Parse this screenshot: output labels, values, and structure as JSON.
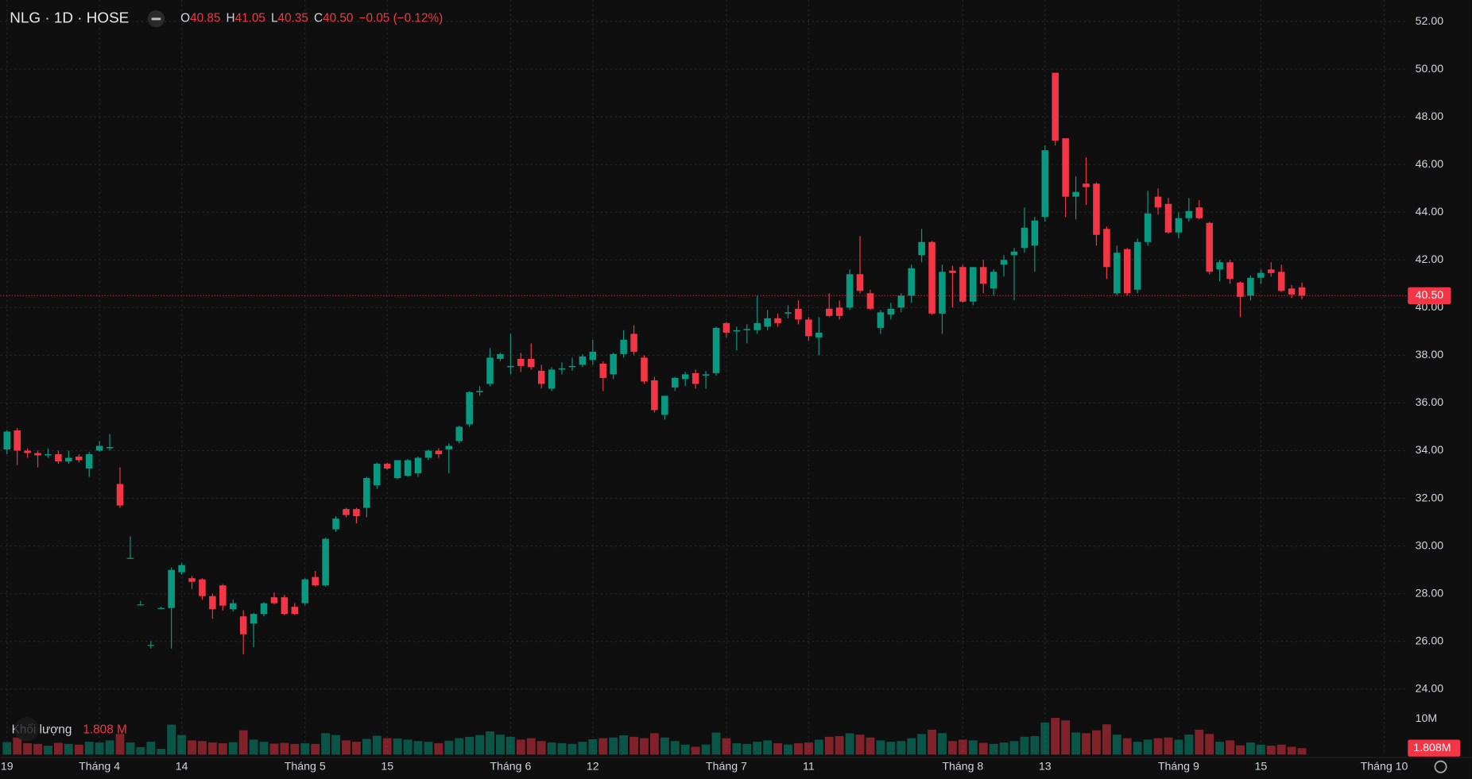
{
  "chart_data": {
    "type": "candlestick",
    "title": "NLG · 1D · HOSE",
    "legend_fields": [
      [
        "O",
        "40.85"
      ],
      [
        "H",
        "41.05"
      ],
      [
        "L",
        "40.35"
      ],
      [
        "C",
        "40.50"
      ]
    ],
    "change": "−0.05 (−0.12%)",
    "up_color": "#089981",
    "down_color": "#f23645",
    "open": [
      34.05,
      34.85,
      34.0,
      33.9,
      33.8,
      33.85,
      33.55,
      33.75,
      33.25,
      34.0,
      34.1,
      32.6,
      29.5,
      27.55,
      25.85,
      27.4,
      27.4,
      28.9,
      28.65,
      28.6,
      27.9,
      28.35,
      27.35,
      27.05,
      26.75,
      27.15,
      27.85,
      27.85,
      27.45,
      27.6,
      28.7,
      28.35,
      30.7,
      31.55,
      31.55,
      31.6,
      32.55,
      33.45,
      32.85,
      32.95,
      33.05,
      33.7,
      34.0,
      34.05,
      34.4,
      35.1,
      36.45,
      36.8,
      37.85,
      37.5,
      37.85,
      37.85,
      37.35,
      36.6,
      37.4,
      37.5,
      37.6,
      37.8,
      37.65,
      37.2,
      38.05,
      38.9,
      37.9,
      36.95,
      35.5,
      36.65,
      37.0,
      37.25,
      37.15,
      37.25,
      39.35,
      39.0,
      39.05,
      39.05,
      39.2,
      39.55,
      39.75,
      39.95,
      39.5,
      38.75,
      39.95,
      40.0,
      40.0,
      41.4,
      40.6,
      39.15,
      39.7,
      40.0,
      40.5,
      42.2,
      42.75,
      39.75,
      41.55,
      41.7,
      40.25,
      41.7,
      40.8,
      41.8,
      42.2,
      42.5,
      42.6,
      43.8,
      49.85,
      47.1,
      44.65,
      45.2,
      45.2,
      43.3,
      40.6,
      42.45,
      40.75,
      42.75,
      44.65,
      44.35,
      43.15,
      43.75,
      44.2,
      43.55,
      41.6,
      41.9,
      41.05,
      40.5,
      41.25,
      41.6,
      41.5,
      40.8,
      40.85
    ],
    "high": [
      34.85,
      34.95,
      34.1,
      34.0,
      34.1,
      34.0,
      34.0,
      33.85,
      33.95,
      34.4,
      34.7,
      33.3,
      30.4,
      27.7,
      26.0,
      27.45,
      29.1,
      29.3,
      28.75,
      28.65,
      28.0,
      28.4,
      27.75,
      27.3,
      27.2,
      27.65,
      28.05,
      27.95,
      27.6,
      28.65,
      28.95,
      30.35,
      31.25,
      31.6,
      31.6,
      32.9,
      33.5,
      33.5,
      33.6,
      33.65,
      33.75,
      34.05,
      34.1,
      34.3,
      35.05,
      36.5,
      36.7,
      38.3,
      38.1,
      38.9,
      38.1,
      38.5,
      37.6,
      37.5,
      37.7,
      37.9,
      38.05,
      38.65,
      37.75,
      38.1,
      39.05,
      39.25,
      38.0,
      37.1,
      36.3,
      37.1,
      37.3,
      37.4,
      37.35,
      39.2,
      39.4,
      39.2,
      39.3,
      40.5,
      39.9,
      39.75,
      40.1,
      40.3,
      39.6,
      39.6,
      40.6,
      40.3,
      41.6,
      43.0,
      40.75,
      39.9,
      40.2,
      40.6,
      41.8,
      43.3,
      42.8,
      41.8,
      41.75,
      41.8,
      41.7,
      42.0,
      41.6,
      42.2,
      42.5,
      44.2,
      43.8,
      46.8,
      49.85,
      47.1,
      45.5,
      46.3,
      45.25,
      43.4,
      42.6,
      42.5,
      42.9,
      44.9,
      45.0,
      44.6,
      44.0,
      44.6,
      44.5,
      43.6,
      42.0,
      42.0,
      41.1,
      41.35,
      41.6,
      41.9,
      41.8,
      40.95,
      41.05
    ],
    "low": [
      33.85,
      33.4,
      33.7,
      33.3,
      33.7,
      33.45,
      33.45,
      33.5,
      32.9,
      33.95,
      34.0,
      31.6,
      29.45,
      27.5,
      25.7,
      27.35,
      25.7,
      28.8,
      28.2,
      27.75,
      26.95,
      27.3,
      27.25,
      25.45,
      25.75,
      27.05,
      27.55,
      27.1,
      27.1,
      27.5,
      28.3,
      28.3,
      30.6,
      31.2,
      30.95,
      31.2,
      32.4,
      33.2,
      32.8,
      32.9,
      32.9,
      33.6,
      33.7,
      33.05,
      34.3,
      35.0,
      36.3,
      36.7,
      37.75,
      37.2,
      37.3,
      37.4,
      36.6,
      36.5,
      37.2,
      37.35,
      37.5,
      37.6,
      36.5,
      37.0,
      37.9,
      38.0,
      36.8,
      35.6,
      35.3,
      36.5,
      36.7,
      36.6,
      36.6,
      37.15,
      38.75,
      38.2,
      38.5,
      38.9,
      39.05,
      39.2,
      39.55,
      39.3,
      38.6,
      38.0,
      39.6,
      39.5,
      39.9,
      40.6,
      39.9,
      38.9,
      39.5,
      39.8,
      40.2,
      41.9,
      39.7,
      38.9,
      40.0,
      40.2,
      40.1,
      40.6,
      40.5,
      41.3,
      40.3,
      42.3,
      41.5,
      43.6,
      46.8,
      43.8,
      43.7,
      44.3,
      42.6,
      41.2,
      40.5,
      40.5,
      40.6,
      42.6,
      43.9,
      43.1,
      42.9,
      43.6,
      43.7,
      41.4,
      41.1,
      41.0,
      39.6,
      40.3,
      41.0,
      41.3,
      40.65,
      40.4,
      40.35
    ],
    "close": [
      34.8,
      34.0,
      33.9,
      33.8,
      33.85,
      33.55,
      33.7,
      33.6,
      33.85,
      34.2,
      34.15,
      31.7,
      29.5,
      27.55,
      25.85,
      27.4,
      29.0,
      29.2,
      28.5,
      27.9,
      27.35,
      27.5,
      27.6,
      26.3,
      27.15,
      27.6,
      27.6,
      27.15,
      27.15,
      28.6,
      28.35,
      30.3,
      31.15,
      31.3,
      31.25,
      32.85,
      33.45,
      33.25,
      33.6,
      33.6,
      33.7,
      34.0,
      33.85,
      34.2,
      35.0,
      36.45,
      36.5,
      37.9,
      38.05,
      37.55,
      37.55,
      37.5,
      36.8,
      37.4,
      37.45,
      37.55,
      37.95,
      38.15,
      37.05,
      38.05,
      38.65,
      38.15,
      36.9,
      35.7,
      36.3,
      37.05,
      37.2,
      36.8,
      37.2,
      39.15,
      38.95,
      39.05,
      39.1,
      39.35,
      39.55,
      39.35,
      39.8,
      39.5,
      38.8,
      38.95,
      39.65,
      39.65,
      41.4,
      40.7,
      39.95,
      39.8,
      39.95,
      40.5,
      41.65,
      42.75,
      39.75,
      41.5,
      41.45,
      40.25,
      41.7,
      41.0,
      41.5,
      42.0,
      42.35,
      43.35,
      43.65,
      46.6,
      47.0,
      44.65,
      44.85,
      45.05,
      43.05,
      41.7,
      42.3,
      40.6,
      42.75,
      43.95,
      44.2,
      43.15,
      43.75,
      44.05,
      43.75,
      41.5,
      41.9,
      41.2,
      40.45,
      41.25,
      41.45,
      41.45,
      40.7,
      40.55,
      40.5
    ],
    "xlim": [
      -0.64,
      136.3
    ],
    "xticks": [
      {
        "value": 0,
        "label": "19"
      },
      {
        "value": 9,
        "label": "Tháng 4"
      },
      {
        "value": 17,
        "label": "14"
      },
      {
        "value": 29,
        "label": "Tháng 5"
      },
      {
        "value": 37,
        "label": "15"
      },
      {
        "value": 49,
        "label": "Tháng 6"
      },
      {
        "value": 57,
        "label": "12"
      },
      {
        "value": 70,
        "label": "Tháng 7"
      },
      {
        "value": 78,
        "label": "11"
      },
      {
        "value": 93,
        "label": "Tháng 8"
      },
      {
        "value": 101,
        "label": "13"
      },
      {
        "value": 114,
        "label": "Tháng 9"
      },
      {
        "value": 122,
        "label": "15"
      },
      {
        "value": 134,
        "label": "Tháng 10"
      }
    ],
    "ylim": [
      23.02,
      52.9
    ],
    "yticks": [
      {
        "value": 24,
        "label": "24.00"
      },
      {
        "value": 26,
        "label": "26.00"
      },
      {
        "value": 28,
        "label": "28.00"
      },
      {
        "value": 30,
        "label": "30.00"
      },
      {
        "value": 32,
        "label": "32.00"
      },
      {
        "value": 34,
        "label": "34.00"
      },
      {
        "value": 36,
        "label": "36.00"
      },
      {
        "value": 38,
        "label": "38.00"
      },
      {
        "value": 40,
        "label": "40.00"
      },
      {
        "value": 42,
        "label": "42.00"
      },
      {
        "value": 44,
        "label": "44.00"
      },
      {
        "value": 46,
        "label": "46.00"
      },
      {
        "value": 48,
        "label": "48.00"
      },
      {
        "value": 50,
        "label": "50.00"
      },
      {
        "value": 52,
        "label": "52.00"
      }
    ],
    "grid": true,
    "last_price": {
      "value": 40.5,
      "label": "40.50"
    },
    "volume": {
      "label": "Khối lượng",
      "last_label": "1.808 M",
      "last_badge": {
        "value": 1.808,
        "label": "1.808M"
      },
      "ylim": [
        0,
        11.3
      ],
      "yticks": [
        {
          "value": 10,
          "label": "10M"
        }
      ],
      "values": [
        3.5,
        4.8,
        3.2,
        3.0,
        2.5,
        3.3,
        3.0,
        2.8,
        3.6,
        3.4,
        4.0,
        5.8,
        3.4,
        2.1,
        3.6,
        1.6,
        8.4,
        5.5,
        4.0,
        3.8,
        3.4,
        3.2,
        3.5,
        6.8,
        4.2,
        3.6,
        3.1,
        3.3,
        3.0,
        3.2,
        3.0,
        6.0,
        5.5,
        4.0,
        3.6,
        4.4,
        5.3,
        4.6,
        4.5,
        4.2,
        3.8,
        3.6,
        3.2,
        3.9,
        4.6,
        5.0,
        5.5,
        6.5,
        5.6,
        5.0,
        4.2,
        4.6,
        3.8,
        3.4,
        3.2,
        3.0,
        3.6,
        4.3,
        4.6,
        4.8,
        5.4,
        5.0,
        4.6,
        6.0,
        4.8,
        3.8,
        2.8,
        2.2,
        2.8,
        6.2,
        4.6,
        3.2,
        3.0,
        3.6,
        4.0,
        3.2,
        2.8,
        3.2,
        3.4,
        4.2,
        5.0,
        5.2,
        6.0,
        5.6,
        4.8,
        4.0,
        3.6,
        3.8,
        4.6,
        5.8,
        7.0,
        6.0,
        3.8,
        4.2,
        4.0,
        3.3,
        3.0,
        3.4,
        3.8,
        5.0,
        5.2,
        9.0,
        10.3,
        9.6,
        6.2,
        6.0,
        6.8,
        8.5,
        5.6,
        4.6,
        3.6,
        4.2,
        4.6,
        4.8,
        4.2,
        5.6,
        7.0,
        5.8,
        3.6,
        4.0,
        2.6,
        3.4,
        2.8,
        2.5,
        2.8,
        2.2,
        1.808
      ]
    }
  }
}
